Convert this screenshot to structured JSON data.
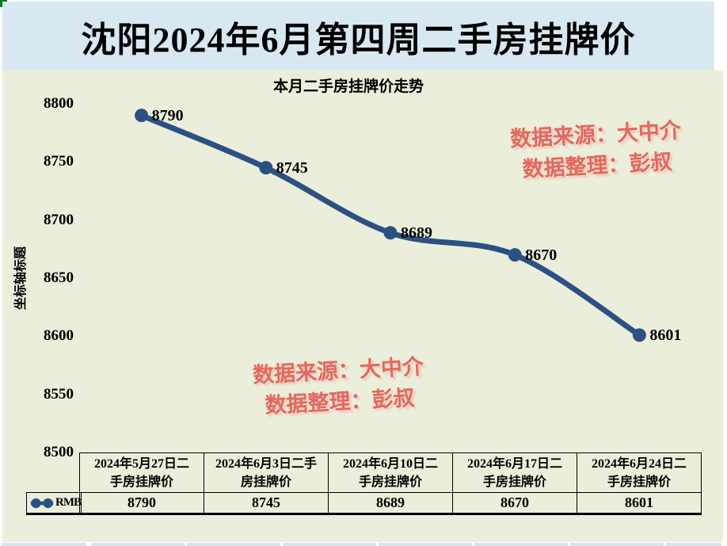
{
  "page": {
    "title": "沈阳2024年6月第四周二手房挂牌价"
  },
  "chart_data": {
    "type": "line",
    "title": "本月二手房挂牌价走势",
    "y_axis_title": "坐标轴标题",
    "categories": [
      "2024年5月27日二手房挂牌价",
      "2024年6月3日二手房挂牌价",
      "2024年6月10日二手房挂牌价",
      "2024年6月17日二手房挂牌价",
      "2024年6月24日二手房挂牌价"
    ],
    "categories_wrapped": [
      [
        "2024年5月27日二",
        "手房挂牌价"
      ],
      [
        "2024年6月3日二手",
        "房挂牌价"
      ],
      [
        "2024年6月10日二",
        "手房挂牌价"
      ],
      [
        "2024年6月17日二",
        "手房挂牌价"
      ],
      [
        "2024年6月24日二",
        "手房挂牌价"
      ]
    ],
    "series": [
      {
        "name": "RMB",
        "values": [
          8790,
          8745,
          8689,
          8670,
          8601
        ]
      }
    ],
    "data_labels": [
      "8790",
      "8745",
      "8689",
      "8670",
      "8601"
    ],
    "ylim": [
      8500,
      8800
    ],
    "yticks": [
      8800,
      8750,
      8700,
      8650,
      8600,
      8550,
      8500
    ],
    "grid": false,
    "smooth": true,
    "marker": "circle",
    "legend_position": "bottom-left",
    "show_data_table": true
  },
  "watermarks": {
    "top_right": {
      "line1": "数据来源：大中介",
      "line2": "数据整理：彭叔"
    },
    "bottom_center": {
      "line1": "数据来源：大中介",
      "line2": "数据整理：彭叔"
    }
  },
  "colors": {
    "title_bg": "#d7e8f1",
    "chart_bg": "#ebeeda",
    "line": "#2b5183",
    "watermark": "#e2695e",
    "sheet_row_fill": "#d9e5ec"
  }
}
